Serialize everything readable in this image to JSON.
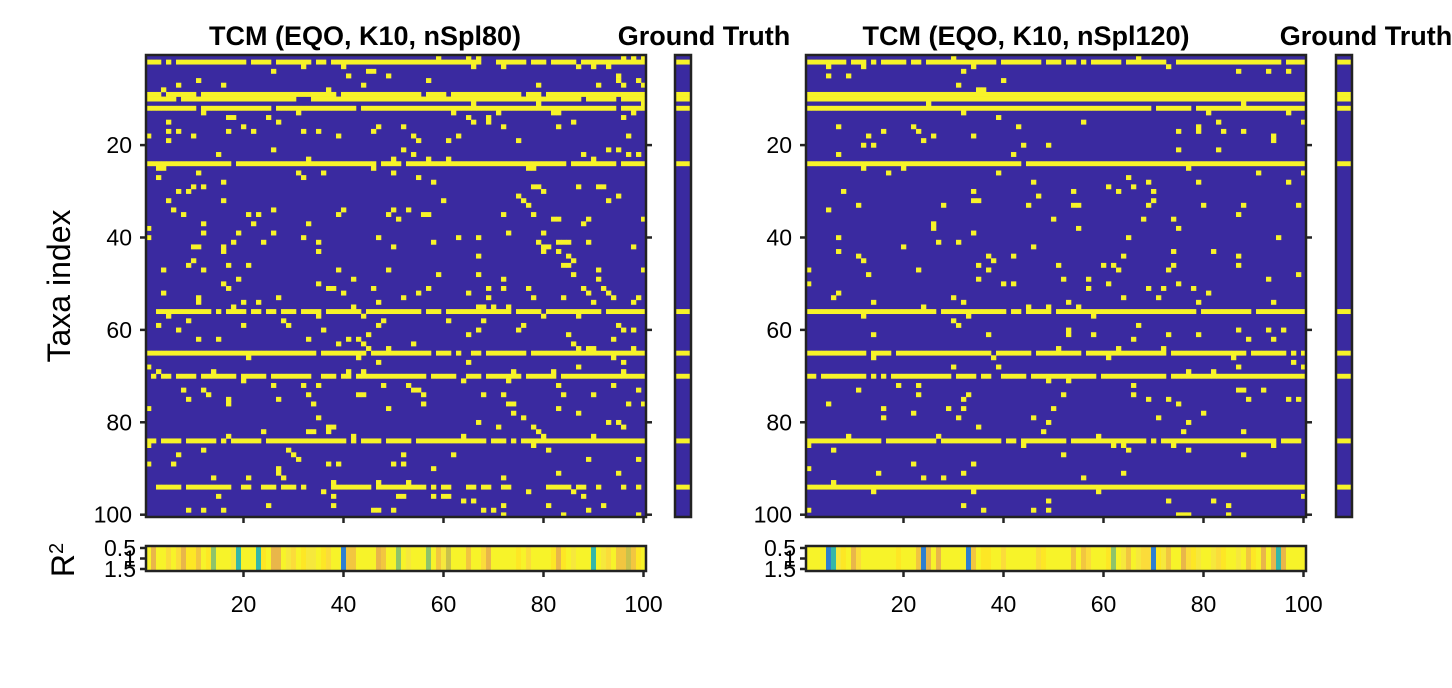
{
  "chart_data": [
    {
      "type": "heatmap",
      "title": "TCM (EQO, K10, nSpl80)",
      "ylabel": "Taxa index",
      "x_range": [
        1,
        100
      ],
      "y_range": [
        1,
        100
      ],
      "x_ticks": [
        20,
        40,
        60,
        80,
        100
      ],
      "y_ticks": [
        20,
        40,
        60,
        80,
        100
      ],
      "color_zero": "#3a2aa0",
      "color_one": "#f7f329",
      "row_density": [
        {
          "row": 2,
          "density": 0.9
        },
        {
          "row": 9,
          "density": 0.95
        },
        {
          "row": 10,
          "density": 0.95
        },
        {
          "row": 12,
          "density": 0.9
        },
        {
          "row": 24,
          "density": 0.9
        },
        {
          "row": 56,
          "density": 0.85
        },
        {
          "row": 65,
          "density": 0.9
        },
        {
          "row": 70,
          "density": 0.8
        },
        {
          "row": 84,
          "density": 0.88
        },
        {
          "row": 94,
          "density": 0.6
        }
      ],
      "background_density": 0.045,
      "ground_truth": {
        "title": "Ground Truth",
        "rows": [
          2,
          9,
          10,
          12,
          24,
          56,
          65,
          70,
          84,
          94
        ]
      },
      "r2": {
        "ylabel": "R2",
        "y_ticks": [
          "0.5",
          "1",
          "1.5"
        ],
        "x_ticks": [
          20,
          40,
          60,
          80,
          100
        ]
      }
    },
    {
      "type": "heatmap",
      "title": "TCM (EQO, K10, nSpl120)",
      "x_range": [
        1,
        100
      ],
      "y_range": [
        1,
        100
      ],
      "x_ticks": [
        20,
        40,
        60,
        80,
        100
      ],
      "y_ticks": [
        20,
        40,
        60,
        80,
        100
      ],
      "color_zero": "#3a2aa0",
      "color_one": "#f7f329",
      "row_density": [
        {
          "row": 2,
          "density": 0.9
        },
        {
          "row": 9,
          "density": 1.0
        },
        {
          "row": 10,
          "density": 1.0
        },
        {
          "row": 12,
          "density": 0.95
        },
        {
          "row": 24,
          "density": 0.98
        },
        {
          "row": 56,
          "density": 0.95
        },
        {
          "row": 65,
          "density": 0.9
        },
        {
          "row": 70,
          "density": 0.88
        },
        {
          "row": 84,
          "density": 0.97
        },
        {
          "row": 94,
          "density": 1.0
        }
      ],
      "background_density": 0.03,
      "ground_truth": {
        "title": "Ground Truth",
        "rows": [
          2,
          9,
          10,
          12,
          24,
          56,
          65,
          70,
          84,
          94
        ]
      },
      "r2": {
        "ylabel": "R2",
        "y_ticks": [
          "0.5",
          "1",
          "1.5"
        ],
        "x_ticks": [
          20,
          40,
          60,
          80,
          100
        ]
      }
    }
  ]
}
